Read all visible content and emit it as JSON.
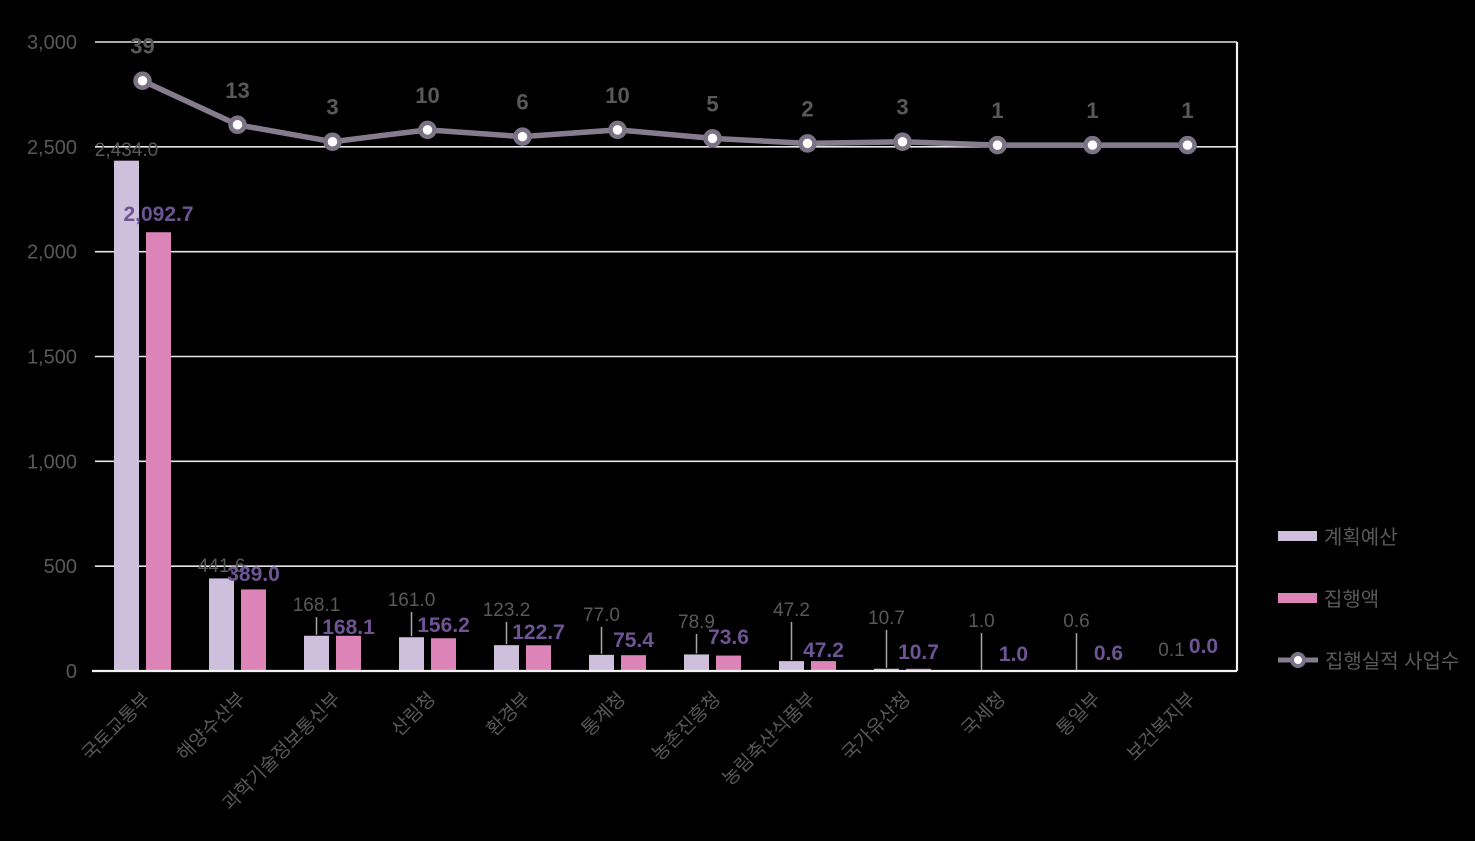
{
  "chart_data": {
    "type": "bar",
    "subtype": "grouped-bars-with-line",
    "title": "",
    "categories": [
      "국토교통부",
      "해양수산부",
      "과학기술정보통신부",
      "산림청",
      "환경부",
      "통계청",
      "농촌진흥청",
      "농림축산식품부",
      "국가유산청",
      "국세청",
      "통일부",
      "보건복지부"
    ],
    "series": [
      {
        "name": "계획예산",
        "type": "bar",
        "color": "#CEC0DD",
        "values": [
          2434.0,
          441.6,
          168.1,
          161.0,
          123.2,
          77.0,
          78.9,
          47.2,
          10.7,
          1.0,
          0.6,
          0.1
        ],
        "labels": [
          "2,434.0",
          "441.6",
          "168.1",
          "161.0",
          "123.2",
          "77.0",
          "78.9",
          "47.2",
          "10.7",
          "1.0",
          "0.6",
          "0.1"
        ],
        "label_color": "#595959"
      },
      {
        "name": "집행액",
        "type": "bar",
        "color": "#DC83B8",
        "values": [
          2092.7,
          389.0,
          168.1,
          156.2,
          122.7,
          75.4,
          73.6,
          47.2,
          10.7,
          1.0,
          0.6,
          0.0
        ],
        "labels": [
          "2,092.7",
          "389.0",
          "168.1",
          "156.2",
          "122.7",
          "75.4",
          "73.6",
          "47.2",
          "10.7",
          "1.0",
          "0.6",
          "0.0"
        ],
        "label_color": "#6E5494"
      },
      {
        "name": "집행실적 사업수",
        "type": "line",
        "color": "#867C90",
        "marker_ring_color": "#7B7285",
        "marker_fill": "#FFFFFF",
        "values": [
          39,
          13,
          3,
          10,
          6,
          10,
          5,
          2,
          3,
          1,
          1,
          1
        ],
        "labels": [
          "39",
          "13",
          "3",
          "10",
          "6",
          "10",
          "5",
          "2",
          "3",
          "1",
          "1",
          "1"
        ],
        "label_color": "#595959"
      }
    ],
    "y_axis": {
      "min": 0,
      "max": 3000,
      "ticks": [
        {
          "v": 0,
          "label": "0"
        },
        {
          "v": 500,
          "label": "500"
        },
        {
          "v": 1000,
          "label": "1,000"
        },
        {
          "v": 1500,
          "label": "1,500"
        },
        {
          "v": 2000,
          "label": "2,000"
        },
        {
          "v": 2500,
          "label": "2,500"
        },
        {
          "v": 3000,
          "label": "3,000"
        }
      ],
      "tick_color": "#595959"
    },
    "grid": true,
    "gridline_color": "#E6E6E6",
    "axis_line_color": "#F2F2F2",
    "leader_line_color": "#A6A6A6",
    "legend_position": "right",
    "x_label_color": "#595959"
  }
}
